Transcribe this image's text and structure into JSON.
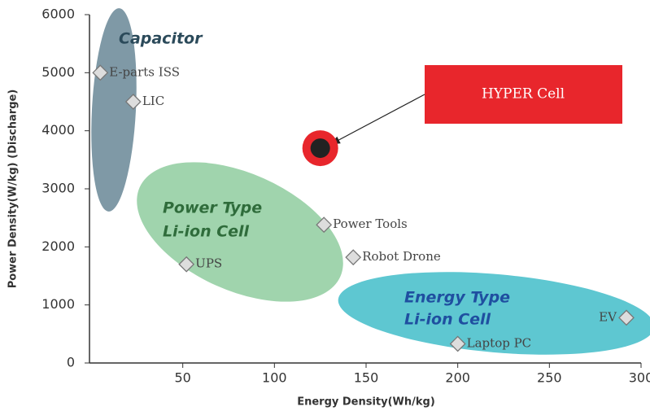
{
  "chart_data": {
    "type": "scatter",
    "xlabel": "Energy Density(Wh/kg)",
    "ylabel": "Power Density(W/kg) (Discharge)",
    "x": [
      5,
      23,
      52,
      127,
      143,
      200,
      292
    ],
    "values": [
      5000,
      4500,
      1700,
      2380,
      1820,
      330,
      780
    ],
    "point_labels": [
      "E-parts ISS",
      "LIC",
      "UPS",
      "Power Tools",
      "Robot Drone",
      "Laptop PC",
      "EV"
    ],
    "regions": [
      "Capacitor",
      "Power Type",
      "Li-ion Cell",
      "Energy Type",
      "Li-ion Cell"
    ],
    "highlight": {
      "label": "HYPER Cell",
      "x": 125,
      "y": 3700
    },
    "xlim": [
      0,
      300
    ],
    "ylim": [
      0,
      6000
    ],
    "xticks": [
      50,
      100,
      150,
      200,
      250,
      300
    ],
    "yticks": [
      0,
      1000,
      2000,
      3000,
      4000,
      5000,
      6000
    ]
  }
}
